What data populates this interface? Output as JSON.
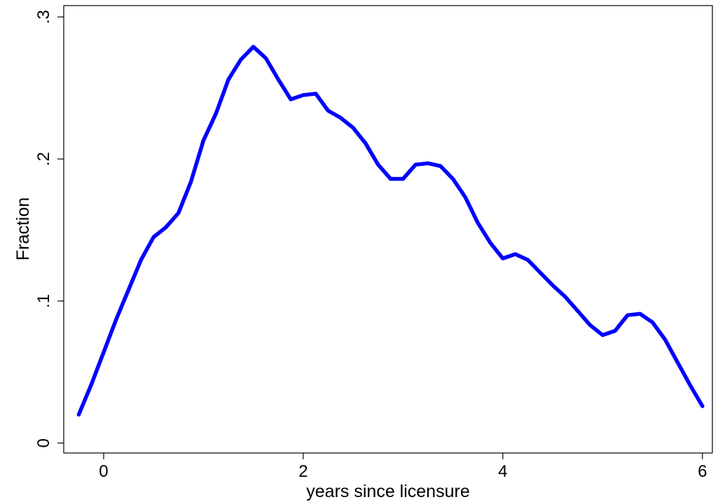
{
  "chart_data": {
    "type": "line",
    "xlabel": "years since licensure",
    "ylabel": "Fraction",
    "xlim": [
      -0.4,
      6.1
    ],
    "ylim": [
      -0.007,
      0.308
    ],
    "x_ticks": [
      {
        "value": 0,
        "label": "0"
      },
      {
        "value": 2,
        "label": "2"
      },
      {
        "value": 4,
        "label": "4"
      },
      {
        "value": 6,
        "label": "6"
      }
    ],
    "y_ticks": [
      {
        "value": 0,
        "label": "0"
      },
      {
        "value": 0.1,
        "label": ".1"
      },
      {
        "value": 0.2,
        "label": ".2"
      },
      {
        "value": 0.3,
        "label": ".3"
      }
    ],
    "grid": false,
    "legend": "none",
    "series": [
      {
        "color": "#0000ff",
        "x": [
          -0.25,
          -0.125,
          0.0,
          0.125,
          0.25,
          0.375,
          0.5,
          0.625,
          0.75,
          0.875,
          1.0,
          1.125,
          1.25,
          1.375,
          1.5,
          1.625,
          1.75,
          1.875,
          2.0,
          2.125,
          2.25,
          2.375,
          2.5,
          2.625,
          2.75,
          2.875,
          3.0,
          3.125,
          3.25,
          3.375,
          3.5,
          3.625,
          3.75,
          3.875,
          4.0,
          4.125,
          4.25,
          4.375,
          4.5,
          4.625,
          4.75,
          4.875,
          5.0,
          5.125,
          5.25,
          5.375,
          5.5,
          5.625,
          5.75,
          5.875,
          6.0
        ],
        "y": [
          0.02,
          0.041,
          0.064,
          0.087,
          0.108,
          0.129,
          0.145,
          0.152,
          0.162,
          0.184,
          0.213,
          0.232,
          0.256,
          0.27,
          0.279,
          0.271,
          0.256,
          0.242,
          0.245,
          0.246,
          0.234,
          0.229,
          0.222,
          0.211,
          0.196,
          0.186,
          0.186,
          0.196,
          0.197,
          0.195,
          0.186,
          0.173,
          0.155,
          0.141,
          0.13,
          0.133,
          0.129,
          0.12,
          0.111,
          0.103,
          0.093,
          0.083,
          0.076,
          0.079,
          0.09,
          0.091,
          0.085,
          0.073,
          0.057,
          0.041,
          0.026
        ]
      }
    ]
  }
}
